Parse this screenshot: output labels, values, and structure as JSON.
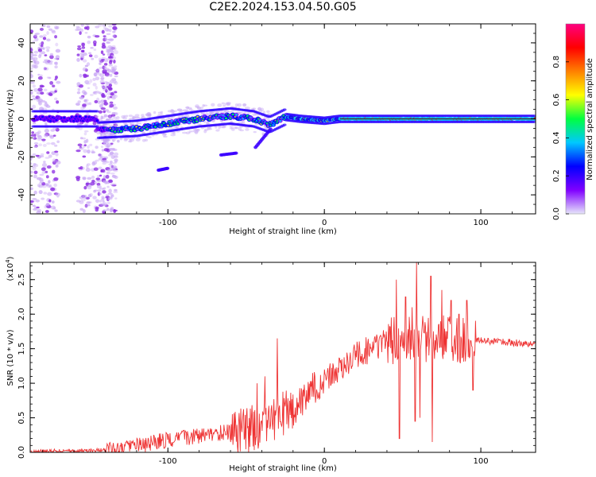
{
  "title": "C2E2.2024.153.04.50.G05",
  "chart_data": [
    {
      "type": "heatmap",
      "xlabel": "Height of straight line (km)",
      "ylabel": "Frequency (Hz)",
      "xlim": [
        -188,
        135
      ],
      "ylim": [
        -50,
        50
      ],
      "x_ticks": [
        -100,
        0,
        100
      ],
      "x_tick_labels": [
        "-100",
        "0",
        "100"
      ],
      "y_ticks": [
        -40,
        -20,
        0,
        20,
        40
      ],
      "y_tick_labels": [
        "-40",
        "-20",
        "0",
        "20",
        "40"
      ],
      "colorbar": {
        "label": "Normalized spectral amplitude",
        "range": [
          0,
          1
        ],
        "ticks": [
          0.0,
          0.2,
          0.4,
          0.6,
          0.8
        ],
        "tick_labels": [
          "0.0",
          "0.2",
          "0.4",
          "0.6",
          "0.8"
        ],
        "colors": [
          "#e6e6fa",
          "#8000ff",
          "#0000ff",
          "#00c8ff",
          "#00ff40",
          "#ffff00",
          "#ff8000",
          "#ff0000",
          "#ff0080"
        ]
      },
      "ridge_center_hz": [
        [
          -145,
          -6
        ],
        [
          -120,
          -5
        ],
        [
          -100,
          -2.5
        ],
        [
          -80,
          0
        ],
        [
          -60,
          1.5
        ],
        [
          -45,
          0
        ],
        [
          -35,
          -3
        ],
        [
          -25,
          1
        ],
        [
          -15,
          0
        ],
        [
          0,
          -1
        ],
        [
          10,
          0
        ],
        [
          50,
          0
        ],
        [
          100,
          0
        ],
        [
          135,
          0
        ]
      ],
      "branches": [
        {
          "x": [
            -44,
            -34
          ],
          "y": [
            -15,
            -5
          ]
        },
        {
          "x": [
            -66,
            -56
          ],
          "y": [
            -19,
            -18
          ]
        },
        {
          "x": [
            -106,
            -100
          ],
          "y": [
            -27,
            -26
          ]
        }
      ],
      "grid": false
    },
    {
      "type": "line",
      "xlabel": "Height of straight line (km)",
      "ylabel": "SNR (10 * v/v)",
      "y_multiplier": "(x10",
      "y_multiplier_exp": "4",
      "xlim": [
        -188,
        135
      ],
      "ylim": [
        0,
        2.75
      ],
      "x_ticks": [
        -100,
        0,
        100
      ],
      "x_tick_labels": [
        "-100",
        "0",
        "100"
      ],
      "y_ticks": [
        0.0,
        0.5,
        1.0,
        1.5,
        2.0,
        2.5
      ],
      "y_tick_labels": [
        "0.0",
        "0.5",
        "1.0",
        "1.5",
        "2.0",
        "2.5"
      ],
      "line_color": "#ee3333",
      "grid": false,
      "series": [
        {
          "x": [
            -188,
            -170,
            -150,
            -140,
            -130,
            -120,
            -110,
            -100,
            -90,
            -80,
            -70,
            -60,
            -50,
            -45,
            -40,
            -35,
            -30,
            -25,
            -20,
            -15,
            -10,
            -5,
            0,
            5,
            10,
            15,
            20,
            25,
            30,
            35,
            40,
            45,
            50,
            55,
            60,
            65,
            70,
            75,
            80,
            85,
            90,
            95,
            100,
            105,
            110,
            115,
            120,
            125,
            130,
            135
          ],
          "y": [
            0.01,
            0.02,
            0.02,
            0.04,
            0.06,
            0.1,
            0.14,
            0.18,
            0.22,
            0.24,
            0.26,
            0.3,
            0.32,
            0.36,
            0.4,
            0.48,
            0.5,
            0.55,
            0.62,
            0.75,
            0.85,
            0.95,
            1.05,
            1.12,
            1.2,
            1.3,
            1.4,
            1.45,
            1.5,
            1.55,
            1.6,
            1.62,
            1.63,
            1.64,
            1.65,
            1.65,
            1.64,
            1.65,
            1.65,
            1.63,
            1.62,
            1.62,
            1.62,
            1.61,
            1.6,
            1.6,
            1.59,
            1.58,
            1.57,
            1.57
          ]
        }
      ],
      "spikes": [
        {
          "x": -30,
          "y": 1.65
        },
        {
          "x": -38,
          "y": 1.1
        },
        {
          "x": -43,
          "y": 1.0
        },
        {
          "x": 46,
          "y": 2.5
        },
        {
          "x": 48,
          "y": 0.2
        },
        {
          "x": 52,
          "y": 2.25
        },
        {
          "x": 56,
          "y": 2.1
        },
        {
          "x": 58,
          "y": 0.45
        },
        {
          "x": 59,
          "y": 2.75
        },
        {
          "x": 61,
          "y": 0.5
        },
        {
          "x": 68,
          "y": 2.55
        },
        {
          "x": 69,
          "y": 0.15
        },
        {
          "x": 75,
          "y": 2.35
        },
        {
          "x": 81,
          "y": 2.2
        },
        {
          "x": 86,
          "y": 2.0
        },
        {
          "x": 91,
          "y": 2.2
        },
        {
          "x": 95,
          "y": 0.9
        }
      ]
    }
  ]
}
